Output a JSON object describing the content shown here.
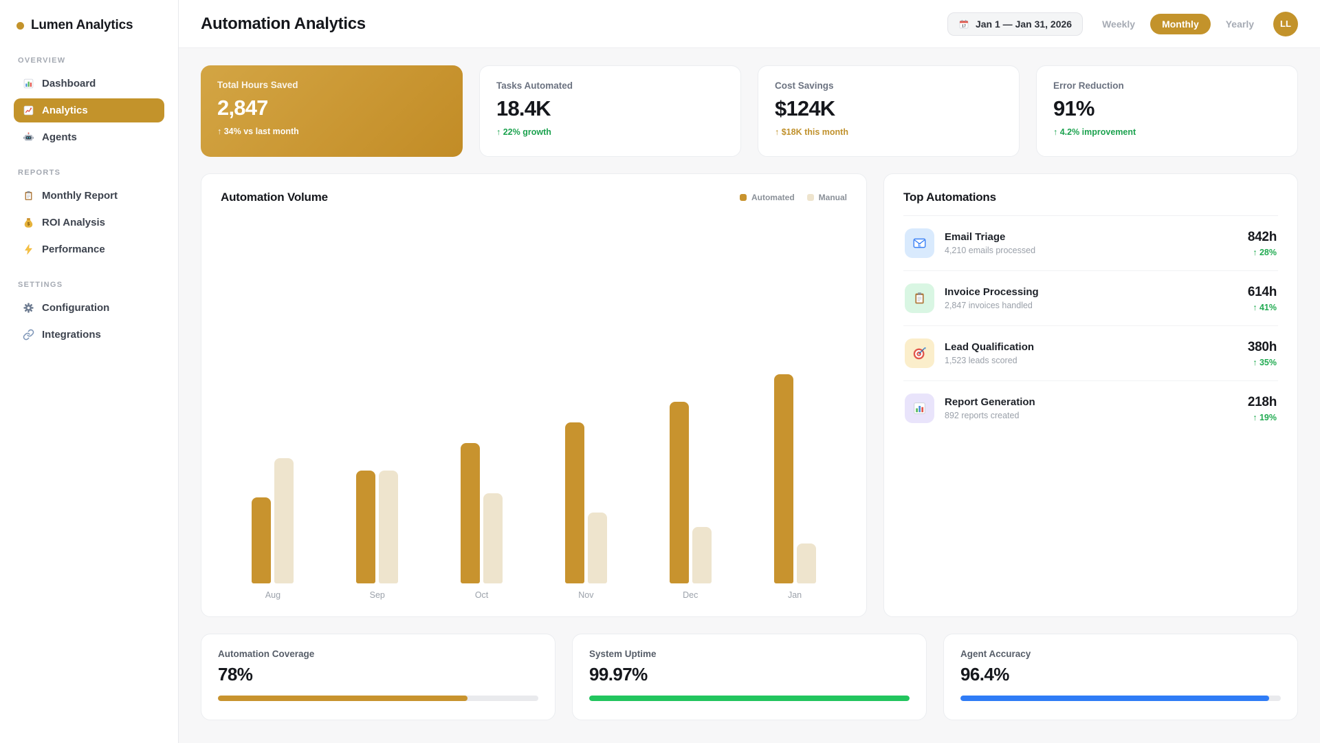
{
  "app": {
    "brand": "Lumen Analytics",
    "accent": "#c3932b"
  },
  "sidebar": {
    "sections": [
      {
        "label": "OVERVIEW",
        "items": [
          {
            "label": "Dashboard",
            "icon": "bar-chart-icon",
            "active": false
          },
          {
            "label": "Analytics",
            "icon": "chart-increasing-icon",
            "active": true
          },
          {
            "label": "Agents",
            "icon": "robot-icon",
            "active": false
          }
        ]
      },
      {
        "label": "REPORTS",
        "items": [
          {
            "label": "Monthly Report",
            "icon": "clipboard-icon",
            "active": false
          },
          {
            "label": "ROI Analysis",
            "icon": "moneybag-icon",
            "active": false
          },
          {
            "label": "Performance",
            "icon": "lightning-icon",
            "active": false
          }
        ]
      },
      {
        "label": "SETTINGS",
        "items": [
          {
            "label": "Configuration",
            "icon": "gear-icon",
            "active": false
          },
          {
            "label": "Integrations",
            "icon": "link-icon",
            "active": false
          }
        ]
      }
    ]
  },
  "header": {
    "title": "Automation Analytics",
    "date_range": "Jan 1 — Jan 31, 2026",
    "period_options": [
      "Weekly",
      "Monthly",
      "Yearly"
    ],
    "active_period": "Monthly",
    "avatar_initials": "LL"
  },
  "stats": [
    {
      "label": "Total Hours Saved",
      "value": "2,847",
      "delta": "↑ 34% vs last month",
      "variant": "gold",
      "delta_color": "white"
    },
    {
      "label": "Tasks Automated",
      "value": "18.4K",
      "delta": "↑ 22% growth",
      "variant": "plain",
      "delta_color": "green"
    },
    {
      "label": "Cost Savings",
      "value": "$124K",
      "delta": "↑ $18K this month",
      "variant": "plain",
      "delta_color": "gold"
    },
    {
      "label": "Error Reduction",
      "value": "91%",
      "delta": "↑ 4.2% improvement",
      "variant": "plain",
      "delta_color": "green"
    }
  ],
  "chart_data": {
    "type": "bar",
    "title": "Automation Volume",
    "categories": [
      "Aug",
      "Sep",
      "Oct",
      "Nov",
      "Dec",
      "Jan"
    ],
    "series": [
      {
        "name": "Automated",
        "color": "#c8932e",
        "values": [
          41,
          54,
          67,
          77,
          87,
          100
        ]
      },
      {
        "name": "Manual",
        "color": "#eee4cd",
        "values": [
          60,
          54,
          43,
          34,
          27,
          19
        ]
      }
    ],
    "xlabel": "",
    "ylabel": "",
    "ylim": [
      0,
      100
    ],
    "grid": false,
    "legend_position": "top-right"
  },
  "top_automations": {
    "title": "Top Automations",
    "items": [
      {
        "name": "Email Triage",
        "detail": "4,210 emails processed",
        "hours": "842h",
        "delta": "↑ 28%",
        "icon": "email-icon",
        "icon_bg": "#d9eafd"
      },
      {
        "name": "Invoice Processing",
        "detail": "2,847 invoices handled",
        "hours": "614h",
        "delta": "↑ 41%",
        "icon": "clipboard-icon",
        "icon_bg": "#d9f6e3"
      },
      {
        "name": "Lead Qualification",
        "detail": "1,523 leads scored",
        "hours": "380h",
        "delta": "↑ 35%",
        "icon": "target-icon",
        "icon_bg": "#fbeecb"
      },
      {
        "name": "Report Generation",
        "detail": "892 reports created",
        "hours": "218h",
        "delta": "↑ 19%",
        "icon": "report-chart-icon",
        "icon_bg": "#e9e4fb"
      }
    ]
  },
  "kpis": [
    {
      "label": "Automation Coverage",
      "value": "78%",
      "progress": 78,
      "color": "#c8932e"
    },
    {
      "label": "System Uptime",
      "value": "99.97%",
      "progress": 99.97,
      "color": "#22c55e"
    },
    {
      "label": "Agent Accuracy",
      "value": "96.4%",
      "progress": 96.4,
      "color": "#2f7cf6"
    }
  ]
}
